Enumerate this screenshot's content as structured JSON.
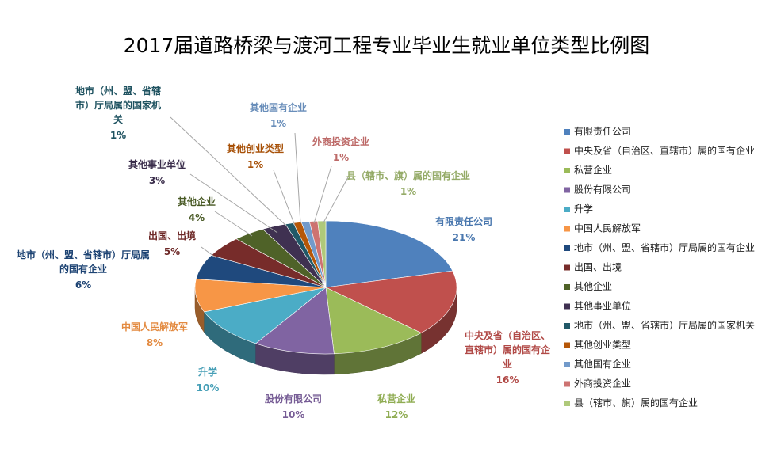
{
  "title": "2017届道路桥梁与渡河工程专业毕业生就业单位类型比例图",
  "chart_data": {
    "type": "pie",
    "title": "2017届道路桥梁与渡河工程专业毕业生就业单位类型比例图",
    "legend_position": "right",
    "series": [
      {
        "slices": [
          {
            "label": "有限责任公司",
            "value": 21,
            "value_label": "21%",
            "color": "#4f81bd"
          },
          {
            "label": "中央及省（自治区、直辖市）属的国有企业",
            "value": 16,
            "value_label": "16%",
            "color": "#c0504d",
            "chart_label": "中央及省（自治区、|直辖市）属的国有企|业"
          },
          {
            "label": "私营企业",
            "value": 12,
            "value_label": "12%",
            "color": "#9bbb59"
          },
          {
            "label": "股份有限公司",
            "value": 10,
            "value_label": "10%",
            "color": "#8064a2"
          },
          {
            "label": "升学",
            "value": 10,
            "value_label": "10%",
            "color": "#4bacc6"
          },
          {
            "label": "中国人民解放军",
            "value": 8,
            "value_label": "8%",
            "color": "#f79646"
          },
          {
            "label": "地市（州、盟、省辖市）厅局属的国有企业",
            "value": 6,
            "value_label": "6%",
            "color": "#1f497d",
            "chart_label": "地市（州、盟、省辖市）厅局属|的国有企业"
          },
          {
            "label": "出国、出境",
            "value": 5,
            "value_label": "5%",
            "color": "#772c2a"
          },
          {
            "label": "其他企业",
            "value": 4,
            "value_label": "4%",
            "color": "#4f6228"
          },
          {
            "label": "其他事业单位",
            "value": 3,
            "value_label": "3%",
            "color": "#3f3151"
          },
          {
            "label": "地市（州、盟、省辖市）厅局属的国家机关",
            "value": 1,
            "value_label": "1%",
            "color": "#215968",
            "chart_label": "地市（州、盟、省辖|市）厅局属的国家机|关"
          },
          {
            "label": "其他创业类型",
            "value": 1,
            "value_label": "1%",
            "color": "#b65708"
          },
          {
            "label": "其他国有企业",
            "value": 1,
            "value_label": "1%",
            "color": "#729aca"
          },
          {
            "label": "外商投资企业",
            "value": 1,
            "value_label": "1%",
            "color": "#cd7371"
          },
          {
            "label": "县（辖市、旗）属的国有企业",
            "value": 1,
            "value_label": "1%",
            "color": "#afc97a"
          }
        ]
      }
    ]
  }
}
